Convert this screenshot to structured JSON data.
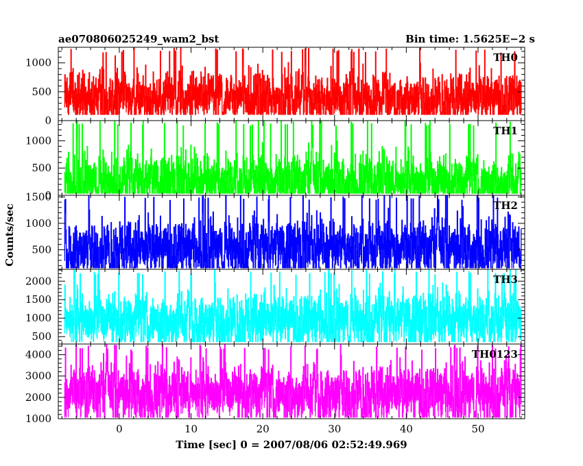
{
  "header": {
    "left_title": "ae070806025249_wam2_bst",
    "right_title": "Bin time: 1.5625E−2 s"
  },
  "axes": {
    "xlabel": "Time [sec] 0 = 2007/08/06 02:52:49.969",
    "ylabel": "Counts/sec"
  },
  "chart_data": {
    "type": "line",
    "title": "ae070806025249_wam2_bst",
    "subtitle": "Bin time: 1.5625E−2 s",
    "xlabel": "Time [sec] 0 = 2007/08/06 02:52:49.969",
    "ylabel": "Counts/sec",
    "xlim": [
      -8.5,
      56.5
    ],
    "x_data_range": [
      -7.6,
      56.0
    ],
    "x_ticks": [
      0,
      10,
      20,
      30,
      40,
      50
    ],
    "grid": false,
    "legend": "none",
    "panels": [
      {
        "name": "TH0",
        "color": "#ff0000",
        "ylim": [
          0,
          1270
        ],
        "y_ticks": [
          0,
          500,
          1000
        ],
        "typical_range": [
          100,
          1270
        ],
        "mean": 560
      },
      {
        "name": "TH1",
        "color": "#00ff00",
        "ylim": [
          0,
          1370
        ],
        "y_ticks": [
          0,
          500,
          1000
        ],
        "typical_range": [
          30,
          1380
        ],
        "mean": 430
      },
      {
        "name": "TH2",
        "color": "#0000ff",
        "ylim": [
          130,
          1530
        ],
        "y_ticks": [
          500,
          1000,
          1500
        ],
        "typical_range": [
          150,
          1550
        ],
        "mean": 730
      },
      {
        "name": "TH3",
        "color": "#00ffff",
        "ylim": [
          300,
          2320
        ],
        "y_ticks": [
          500,
          1000,
          1500,
          2000
        ],
        "typical_range": [
          350,
          2330
        ],
        "mean": 1230
      },
      {
        "name": "TH0123",
        "color": "#ff00ff",
        "ylim": [
          1000,
          4500
        ],
        "y_ticks": [
          1000,
          2000,
          3000,
          4000
        ],
        "typical_range": [
          1050,
          4500
        ],
        "mean": 2700
      }
    ]
  }
}
